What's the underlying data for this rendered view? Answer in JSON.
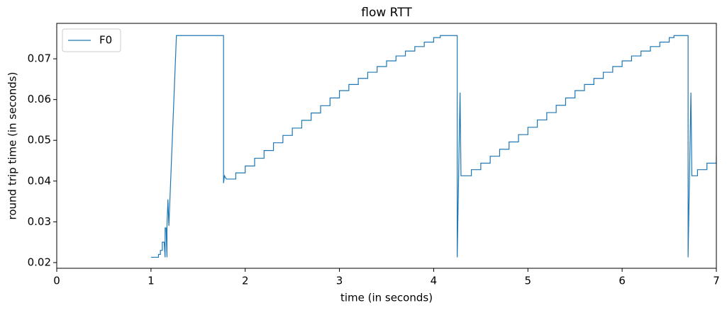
{
  "chart_data": {
    "type": "line",
    "title": "flow RTT",
    "x_label": "time (in seconds)",
    "y_label": "round trip time (in seconds)",
    "legend": "upper left",
    "series": [
      {
        "name": "F0",
        "color": "#1f77b4",
        "x": [
          1.0,
          1.08,
          1.08,
          1.1,
          1.1,
          1.12,
          1.12,
          1.14,
          1.15,
          1.15,
          1.16,
          1.17,
          1.17,
          1.18,
          1.19,
          1.27,
          1.77,
          1.77,
          1.78,
          1.8,
          1.9,
          1.9,
          2.0,
          2.0,
          2.1,
          2.1,
          2.2,
          2.2,
          2.3,
          2.3,
          2.4,
          2.4,
          2.5,
          2.5,
          2.6,
          2.6,
          2.7,
          2.7,
          2.8,
          2.8,
          2.9,
          2.9,
          3.0,
          3.0,
          3.1,
          3.1,
          3.2,
          3.2,
          3.3,
          3.3,
          3.4,
          3.4,
          3.5,
          3.5,
          3.6,
          3.6,
          3.7,
          3.7,
          3.8,
          3.8,
          3.9,
          3.9,
          4.0,
          4.0,
          4.07,
          4.07,
          4.25,
          4.25,
          4.28,
          4.29,
          4.4,
          4.4,
          4.5,
          4.5,
          4.6,
          4.6,
          4.7,
          4.7,
          4.8,
          4.8,
          4.9,
          4.9,
          5.0,
          5.0,
          5.1,
          5.1,
          5.2,
          5.2,
          5.3,
          5.3,
          5.4,
          5.4,
          5.5,
          5.5,
          5.6,
          5.6,
          5.7,
          5.7,
          5.8,
          5.8,
          5.9,
          5.9,
          6.0,
          6.0,
          6.1,
          6.1,
          6.2,
          6.2,
          6.3,
          6.3,
          6.4,
          6.4,
          6.5,
          6.5,
          6.55,
          6.55,
          6.7,
          6.7,
          6.73,
          6.74,
          6.8,
          6.8,
          6.9,
          6.9,
          7.0,
          7.0
        ],
        "values": [
          0.0213,
          0.0213,
          0.022,
          0.022,
          0.023,
          0.023,
          0.025,
          0.025,
          0.0213,
          0.0285,
          0.0285,
          0.0213,
          0.029,
          0.0355,
          0.029,
          0.0757,
          0.0757,
          0.0395,
          0.0413,
          0.0405,
          0.0405,
          0.042,
          0.042,
          0.0437,
          0.0437,
          0.0456,
          0.0456,
          0.0475,
          0.0475,
          0.0494,
          0.0494,
          0.0512,
          0.0512,
          0.053,
          0.053,
          0.0549,
          0.0549,
          0.0567,
          0.0567,
          0.0585,
          0.0585,
          0.0604,
          0.0604,
          0.0622,
          0.0622,
          0.0637,
          0.0637,
          0.0652,
          0.0652,
          0.0667,
          0.0667,
          0.0681,
          0.0681,
          0.0695,
          0.0695,
          0.0707,
          0.0707,
          0.0719,
          0.0719,
          0.073,
          0.073,
          0.0741,
          0.0741,
          0.0752,
          0.0752,
          0.0757,
          0.0757,
          0.0213,
          0.0617,
          0.0413,
          0.0413,
          0.0428,
          0.0428,
          0.0444,
          0.0444,
          0.0461,
          0.0461,
          0.0478,
          0.0478,
          0.0496,
          0.0496,
          0.0514,
          0.0514,
          0.0532,
          0.0532,
          0.055,
          0.055,
          0.0568,
          0.0568,
          0.0586,
          0.0586,
          0.0604,
          0.0604,
          0.0622,
          0.0622,
          0.0637,
          0.0637,
          0.0652,
          0.0652,
          0.0667,
          0.0667,
          0.0681,
          0.0681,
          0.0695,
          0.0695,
          0.0707,
          0.0707,
          0.0719,
          0.0719,
          0.073,
          0.073,
          0.0741,
          0.0741,
          0.0752,
          0.0752,
          0.0757,
          0.0757,
          0.0213,
          0.0617,
          0.0413,
          0.0413,
          0.0428,
          0.0428,
          0.0444,
          0.0444,
          0.0461
        ]
      }
    ],
    "xlim": [
      0,
      7
    ],
    "xticks": [
      0,
      1,
      2,
      3,
      4,
      5,
      6,
      7
    ],
    "ylim": [
      0.0186,
      0.0787
    ],
    "yticks": [
      0.02,
      0.03,
      0.04,
      0.05,
      0.06,
      0.07
    ]
  }
}
